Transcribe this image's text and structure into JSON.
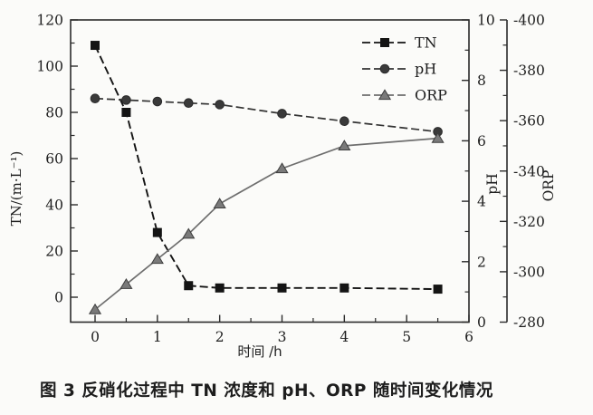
{
  "caption": "图 3  反硝化过程中 TN 浓度和 pH、ORP 随时间变化情况",
  "chart_data": {
    "type": "line",
    "title": "",
    "x": [
      0,
      0.5,
      1,
      1.5,
      2,
      3,
      4,
      5.5
    ],
    "series": [
      {
        "name": "TN",
        "axis": "tn",
        "marker": "square",
        "dashed": true,
        "color": "#141414",
        "marker_fill": "#141414",
        "marker_edge": "#141414",
        "values": [
          109,
          80,
          28,
          5,
          4,
          4,
          4,
          3.5
        ]
      },
      {
        "name": "pH",
        "axis": "ph",
        "marker": "circle",
        "dashed": true,
        "color": "#333333",
        "marker_fill": "#3a3a3a",
        "marker_edge": "#2a2a2a",
        "values": [
          7.4,
          7.35,
          7.3,
          7.25,
          7.2,
          6.9,
          6.65,
          6.3
        ]
      },
      {
        "name": "ORP",
        "axis": "orp",
        "marker": "triangle",
        "dashed": false,
        "color": "#6e6e6e",
        "marker_fill": "#7a7a7a",
        "marker_edge": "#3d3d3d",
        "values": [
          -285,
          -295,
          -305,
          -315,
          -327,
          -341,
          -350,
          -353
        ]
      }
    ],
    "axes": {
      "x": {
        "label": "时间 /h",
        "min": 0,
        "max": 6,
        "major_ticks": [
          0,
          1,
          2,
          3,
          4,
          5,
          6
        ]
      },
      "tn": {
        "label": "TN/(m·L⁻¹)",
        "min": 0,
        "max": 120,
        "major_ticks": [
          0,
          20,
          40,
          60,
          80,
          100,
          120
        ]
      },
      "ph": {
        "label": "pH",
        "min": 0,
        "max": 10,
        "major_ticks": [
          0,
          2,
          4,
          6,
          8,
          10
        ]
      },
      "orp": {
        "label": "ORP",
        "min": -280,
        "max": -400,
        "major_ticks": [
          -280,
          -300,
          -320,
          -340,
          -360,
          -380,
          -400
        ]
      }
    },
    "legend": [
      "TN",
      "pH",
      "ORP"
    ],
    "legend_position": "upper-right-inside",
    "grid": false,
    "colors": {
      "frame": "#2b2b2b",
      "text": "#1e1e1e",
      "background": "#fbfbf9"
    }
  }
}
